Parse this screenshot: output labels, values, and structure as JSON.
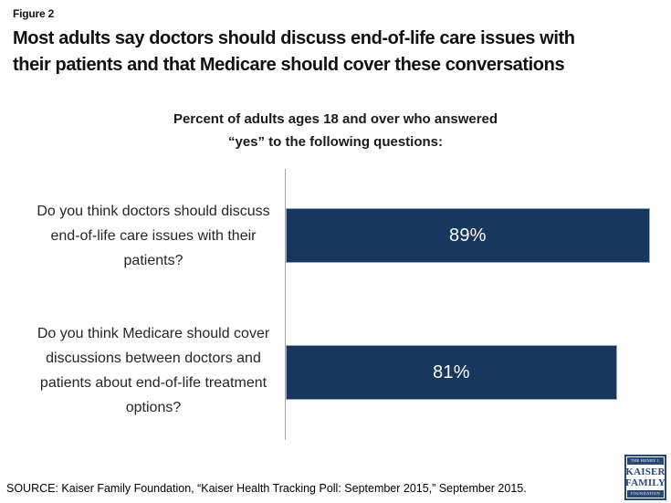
{
  "header": {
    "figure_label": "Figure 2",
    "title": "Most adults say doctors should discuss end-of-life care issues with their patients and that Medicare should cover these conversations",
    "title_lines": [
      "Most adults say doctors should discuss end-of-life care issues with",
      "their patients and that Medicare should cover these conversations"
    ],
    "subtitle_lines": [
      "Percent of adults ages 18 and over who answered",
      "“yes” to the following questions:"
    ]
  },
  "chart_data": {
    "type": "bar",
    "orientation": "horizontal",
    "title": "Percent of adults ages 18 and over who answered “yes” to the following questions:",
    "categories": [
      "Do you think doctors should discuss end-of-life care issues with their patients?",
      "Do you think Medicare should cover discussions between doctors and patients about end-of-life treatment options?"
    ],
    "values": [
      89,
      81
    ],
    "value_labels": [
      "89%",
      "81%"
    ],
    "xlabel": "",
    "ylabel": "",
    "xlim": [
      0,
      100
    ],
    "grid": false,
    "legend": false,
    "bar_color": "#17375E",
    "bar_border_color": "#8FA9C4",
    "value_label_color": "#FFFFFF",
    "axis_line_color": "#A6A6A6"
  },
  "footer": {
    "source": "SOURCE: Kaiser Family Foundation, “Kaiser Health Tracking Poll: September 2015,” September 2015."
  },
  "logo": {
    "line1": "THE HENRY J.",
    "line2": "KAISER",
    "line3": "FAMILY",
    "line4": "FOUNDATION",
    "color": "#274777"
  }
}
